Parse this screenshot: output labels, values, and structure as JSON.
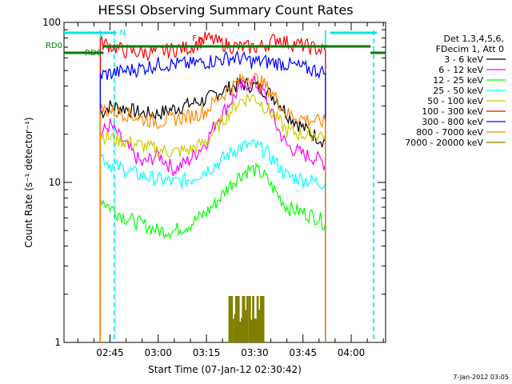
{
  "chart_data": {
    "type": "line",
    "title": "HESSI Observing Summary Count Rates",
    "xlabel": "Start Time (07-Jan-12 02:30:42)",
    "ylabel": "Count Rate (s⁻¹ detector⁻¹)",
    "y_scale": "log",
    "ylim": [
      1,
      100
    ],
    "xlim": [
      "02:30:42",
      "04:10:42"
    ],
    "x_ticks": [
      "02:45",
      "03:00",
      "03:15",
      "03:30",
      "03:45",
      "04:00"
    ],
    "y_ticks": [
      "1",
      "10",
      "100"
    ],
    "legend_position": "right",
    "legend_header": [
      "Det 1,3,4,5,6,",
      "FDecim 1, Att 0"
    ],
    "timestamp": "7-Jan-2012 03:05",
    "annotations": {
      "flags": [
        {
          "label": "N",
          "color": "#00e5e5",
          "segments": [
            [
              "02:30:42",
              "02:47:00"
            ],
            [
              "03:53:30",
              "04:08:00"
            ]
          ]
        },
        {
          "label": "F",
          "color": "#ff0000",
          "segments": [
            [
              "03:13:00",
              "03:13:40"
            ]
          ]
        },
        {
          "label": "RD0",
          "color": "#007a00",
          "segments": [
            [
              "02:43:00",
              "04:06:00"
            ]
          ]
        },
        {
          "label": "RD6",
          "color": "#007a00",
          "segments": [
            [
              "02:30:42",
              "02:43:00"
            ],
            [
              "04:06:00",
              "04:10:42"
            ]
          ]
        }
      ],
      "vlines": [
        {
          "time": "02:42:00",
          "color": "#00e5e5",
          "style": "solid"
        },
        {
          "time": "02:46:20",
          "color": "#00e5e5",
          "style": "dashed"
        },
        {
          "time": "03:52:00",
          "color": "#00e5e5",
          "style": "solid"
        },
        {
          "time": "04:07:00",
          "color": "#00e5e5",
          "style": "dashed"
        }
      ]
    },
    "times": [
      "02:42",
      "02:45",
      "02:50",
      "02:55",
      "03:00",
      "03:05",
      "03:10",
      "03:15",
      "03:18",
      "03:22",
      "03:25",
      "03:28",
      "03:30",
      "03:33",
      "03:37",
      "03:40",
      "03:45",
      "03:50",
      "03:52"
    ],
    "series": [
      {
        "name": "3 - 6 keV",
        "color": "#000000",
        "values": [
          27,
          30,
          29,
          27,
          27,
          29,
          31,
          33,
          36,
          39,
          41,
          41,
          40,
          38,
          33,
          27,
          22,
          19,
          18
        ]
      },
      {
        "name": "6 - 12 keV",
        "color": "#ff00ff",
        "values": [
          20,
          23,
          17,
          13,
          15,
          12,
          14,
          18,
          24,
          31,
          38,
          42,
          42,
          36,
          22,
          17,
          15,
          14,
          13
        ]
      },
      {
        "name": "12 - 25 keV",
        "color": "#00ff00",
        "values": [
          8,
          7,
          6,
          5.5,
          5,
          5,
          5.5,
          6.5,
          7.5,
          9.5,
          11,
          12,
          12,
          11,
          8.5,
          7,
          6.5,
          6,
          5.5
        ]
      },
      {
        "name": "25 - 50 keV",
        "color": "#00ffff",
        "values": [
          15,
          13,
          12,
          11,
          10.5,
          10,
          10.5,
          12,
          13,
          15,
          16.5,
          17,
          17,
          16,
          13,
          11,
          10.5,
          10,
          10
        ]
      },
      {
        "name": "50 - 100 keV",
        "color": "#cccc00",
        "values": [
          20,
          19,
          18,
          17,
          16,
          15.5,
          16,
          18,
          22,
          27,
          32,
          34,
          34,
          30,
          25,
          21,
          20,
          20,
          20
        ]
      },
      {
        "name": "100 - 300 keV",
        "color": "#ff0000",
        "values": [
          75,
          72,
          66,
          65,
          65,
          68,
          70,
          80,
          76,
          72,
          70,
          70,
          70,
          72,
          80,
          75,
          72,
          68,
          66
        ]
      },
      {
        "name": "300 - 800 keV",
        "color": "#0000ff",
        "values": [
          47,
          48,
          50,
          52,
          55,
          55,
          55,
          57,
          58,
          60,
          60,
          58,
          57,
          57,
          56,
          55,
          52,
          50,
          48
        ]
      },
      {
        "name": "800 - 7000 keV",
        "color": "#ff8800",
        "values": [
          29,
          28,
          27,
          25,
          24,
          25,
          26,
          28,
          33,
          38,
          43,
          46,
          45,
          41,
          33,
          27,
          25,
          24,
          24
        ]
      },
      {
        "name": "7000 - 20000 keV",
        "color": "#808000",
        "values": [
          null,
          null,
          null,
          null,
          null,
          null,
          null,
          null,
          null,
          1.95,
          1.95,
          1.95,
          1.95,
          1.95,
          null,
          null,
          null,
          null,
          null
        ]
      }
    ]
  }
}
